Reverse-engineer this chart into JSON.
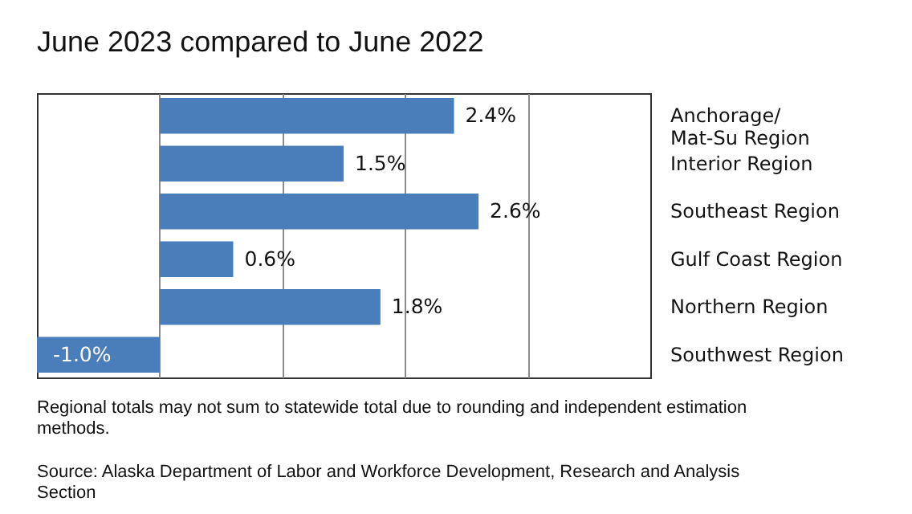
{
  "chart_data": {
    "type": "bar",
    "orientation": "horizontal",
    "title": "June 2023 compared to June 2022",
    "categories": [
      "Anchorage/\nMat-Su Region",
      "Interior Region",
      "Southeast Region",
      "Gulf Coast Region",
      "Northern Region",
      "Southwest Region"
    ],
    "values": [
      2.4,
      1.5,
      2.6,
      0.6,
      1.8,
      -1.0
    ],
    "value_labels": [
      "2.4%",
      "1.5%",
      "2.6%",
      "0.6%",
      "1.8%",
      "-1.0%"
    ],
    "color": "#4a7ebb",
    "xlim": [
      -1,
      4
    ],
    "xticks": [
      {
        "value": 0,
        "label": null
      },
      {
        "value": 1,
        "label": null
      },
      {
        "value": 2,
        "label": null
      },
      {
        "value": 3,
        "label": null
      }
    ],
    "grid": "x",
    "tick_labels": "y",
    "annotations": [
      "Regional totals may not sum to statewide total due to rounding and independent estimation methods.",
      "Source: Alaska Department of Labor and Workforce Development, Research and Analysis Section"
    ]
  }
}
